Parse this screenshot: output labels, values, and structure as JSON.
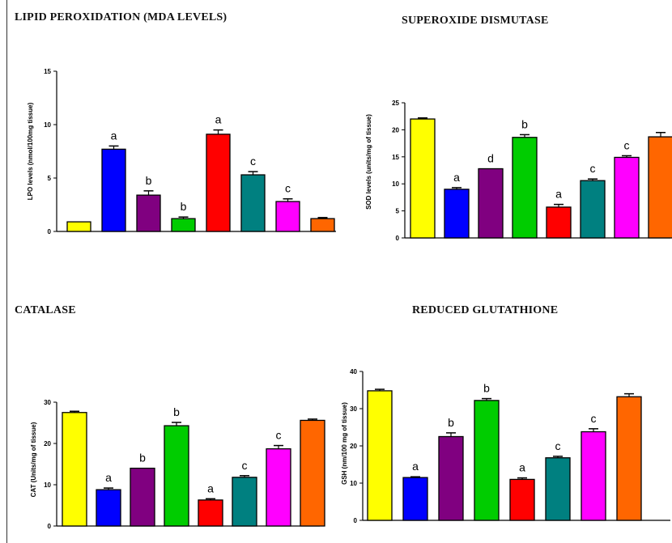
{
  "bar_colors": [
    "#ffff00",
    "#0000ff",
    "#800080",
    "#00cc00",
    "#ff0000",
    "#008080",
    "#ff00ff",
    "#ff6600"
  ],
  "chart_data": [
    {
      "type": "bar",
      "title": "LIPID PEROXIDATION (MDA LEVELS)",
      "ylabel": "LPO levels (nmol/100mg tissue)",
      "ylim": [
        0,
        15
      ],
      "yticks": [
        0,
        5,
        10,
        15
      ],
      "values": [
        0.9,
        7.7,
        3.4,
        1.2,
        9.1,
        5.3,
        2.8,
        1.2
      ],
      "errors": [
        0.0,
        0.3,
        0.4,
        0.15,
        0.4,
        0.3,
        0.25,
        0.1
      ],
      "labels": [
        "",
        "a",
        "b",
        "b",
        "a",
        "c",
        "c",
        ""
      ]
    },
    {
      "type": "bar",
      "title": "SUPEROXIDE DISMUTASE",
      "ylabel": "SOD levels (units/mg of tissue)",
      "ylim": [
        0,
        25
      ],
      "yticks": [
        0,
        5,
        10,
        15,
        20,
        25
      ],
      "values": [
        22.0,
        9.0,
        12.8,
        18.6,
        5.7,
        10.6,
        14.9,
        18.7
      ],
      "errors": [
        0.2,
        0.3,
        0.0,
        0.5,
        0.5,
        0.3,
        0.3,
        0.8
      ],
      "labels": [
        "",
        "a",
        "d",
        "b",
        "a",
        "c",
        "c",
        ""
      ]
    },
    {
      "type": "bar",
      "title": "CATALASE",
      "ylabel": "CAT (Units/mg of tissue)",
      "ylim": [
        0,
        30
      ],
      "yticks": [
        0,
        10,
        20,
        30
      ],
      "values": [
        27.5,
        8.8,
        14.0,
        24.3,
        6.3,
        11.8,
        18.7,
        25.6
      ],
      "errors": [
        0.3,
        0.4,
        0.0,
        0.8,
        0.3,
        0.4,
        0.8,
        0.3
      ],
      "labels": [
        "",
        "a",
        "b",
        "b",
        "a",
        "c",
        "c",
        ""
      ]
    },
    {
      "type": "bar",
      "title": "REDUCED GLUTATHIONE",
      "ylabel": "GSH (nm/100 mg of tissue)",
      "ylim": [
        0,
        40
      ],
      "yticks": [
        0,
        10,
        20,
        30,
        40
      ],
      "values": [
        34.8,
        11.5,
        22.5,
        32.2,
        11.0,
        16.8,
        23.8,
        33.2
      ],
      "errors": [
        0.4,
        0.2,
        1.0,
        0.5,
        0.4,
        0.4,
        0.8,
        0.8
      ],
      "labels": [
        "",
        "a",
        "b",
        "b",
        "a",
        "c",
        "c",
        ""
      ]
    }
  ]
}
